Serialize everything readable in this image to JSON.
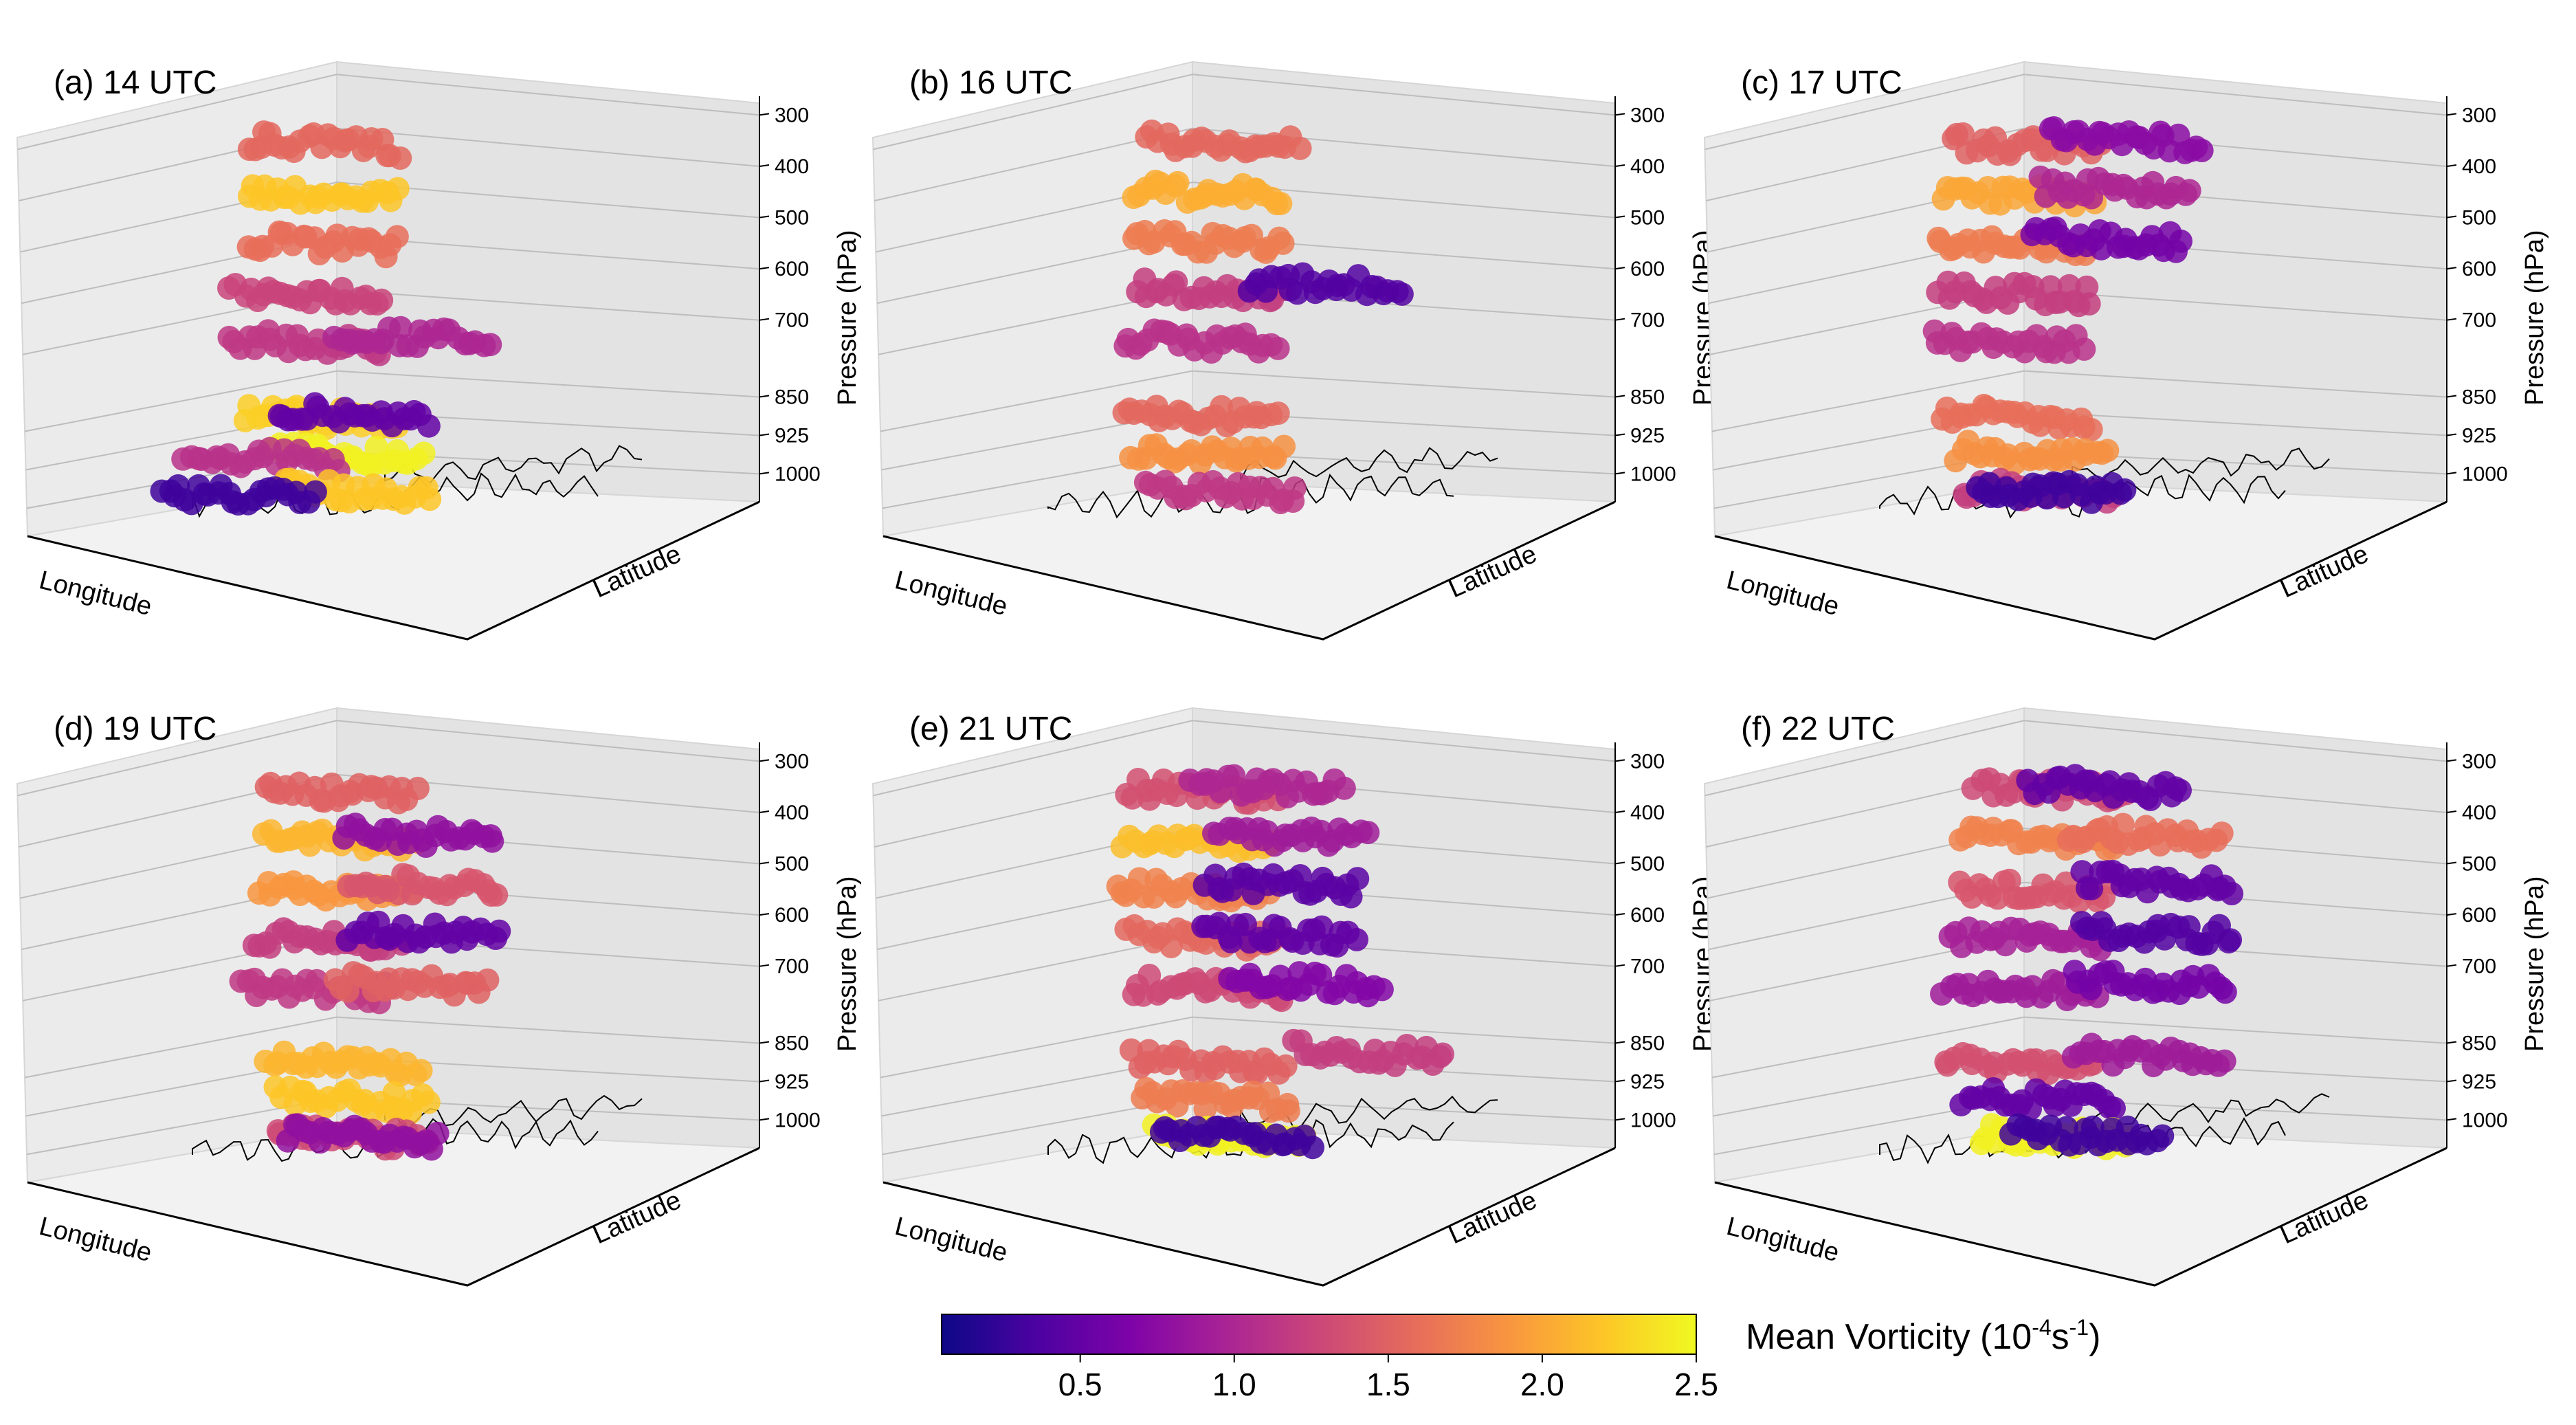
{
  "chart_data": {
    "type": "scatter",
    "subtype": "3d-scatter-panels",
    "colormap": "plasma",
    "colorbar": {
      "label_main": "Mean Vorticity (10",
      "label_exp1": "-4",
      "label_mid": "s",
      "label_exp2": "-1",
      "label_end": ")",
      "range": [
        0.05,
        2.5
      ],
      "ticks": [
        "0.5",
        "1.0",
        "1.5",
        "2.0",
        "2.5"
      ],
      "tick_values": [
        0.5,
        1.0,
        1.5,
        2.0,
        2.5
      ]
    },
    "axes": {
      "xlabel": "Longitude",
      "ylabel": "Latitude",
      "zlabel": "Pressure (hPa)",
      "zticks": [
        "300",
        "400",
        "500",
        "600",
        "700",
        "850",
        "925",
        "1000"
      ]
    },
    "panels": [
      {
        "title": "(a) 14 UTC",
        "levels": [
          {
            "p": 300,
            "blobs": [
              {
                "lon": 0.34,
                "lat": 0.53,
                "v": 1.55
              }
            ]
          },
          {
            "p": 400,
            "blobs": [
              {
                "lon": 0.34,
                "lat": 0.53,
                "v": 2.2
              }
            ]
          },
          {
            "p": 500,
            "blobs": [
              {
                "lon": 0.34,
                "lat": 0.53,
                "v": 1.6
              }
            ]
          },
          {
            "p": 600,
            "blobs": [
              {
                "lon": 0.3,
                "lat": 0.53,
                "v": 1.25
              }
            ]
          },
          {
            "p": 700,
            "blobs": [
              {
                "lon": 0.3,
                "lat": 0.52,
                "v": 1.15
              },
              {
                "lon": 0.46,
                "lat": 0.74,
                "v": 1.0
              }
            ]
          },
          {
            "p": 850,
            "blobs": [
              {
                "lon": 0.35,
                "lat": 0.5,
                "v": 2.25
              },
              {
                "lon": 0.38,
                "lat": 0.6,
                "v": 0.5
              }
            ]
          },
          {
            "p": 925,
            "blobs": [
              {
                "lon": 0.4,
                "lat": 0.53,
                "v": 2.45
              },
              {
                "lon": 0.25,
                "lat": 0.4,
                "v": 1.1
              }
            ]
          },
          {
            "p": 1000,
            "blobs": [
              {
                "lon": 0.44,
                "lat": 0.5,
                "v": 2.2
              },
              {
                "lon": 0.2,
                "lat": 0.38,
                "v": 0.3
              }
            ]
          }
        ]
      },
      {
        "title": "(b) 16 UTC",
        "levels": [
          {
            "p": 300,
            "blobs": [
              {
                "lon": 0.44,
                "lat": 0.56,
                "v": 1.55
              }
            ]
          },
          {
            "p": 400,
            "blobs": [
              {
                "lon": 0.4,
                "lat": 0.56,
                "v": 2.05
              }
            ]
          },
          {
            "p": 500,
            "blobs": [
              {
                "lon": 0.4,
                "lat": 0.56,
                "v": 1.7
              }
            ]
          },
          {
            "p": 600,
            "blobs": [
              {
                "lon": 0.4,
                "lat": 0.58,
                "v": 1.2
              },
              {
                "lon": 0.55,
                "lat": 0.85,
                "v": 0.4
              }
            ]
          },
          {
            "p": 700,
            "blobs": [
              {
                "lon": 0.38,
                "lat": 0.56,
                "v": 1.1
              }
            ]
          },
          {
            "p": 850,
            "blobs": [
              {
                "lon": 0.38,
                "lat": 0.56,
                "v": 1.55
              }
            ]
          },
          {
            "p": 925,
            "blobs": [
              {
                "lon": 0.4,
                "lat": 0.56,
                "v": 1.85
              }
            ]
          },
          {
            "p": 1000,
            "blobs": [
              {
                "lon": 0.44,
                "lat": 0.55,
                "v": 1.15
              }
            ]
          }
        ]
      },
      {
        "title": "(c) 17 UTC",
        "levels": [
          {
            "p": 300,
            "blobs": [
              {
                "lon": 0.4,
                "lat": 0.5,
                "v": 1.5
              },
              {
                "lon": 0.56,
                "lat": 0.68,
                "v": 0.75
              }
            ]
          },
          {
            "p": 400,
            "blobs": [
              {
                "lon": 0.38,
                "lat": 0.5,
                "v": 2.0
              },
              {
                "lon": 0.52,
                "lat": 0.7,
                "v": 1.0
              }
            ]
          },
          {
            "p": 500,
            "blobs": [
              {
                "lon": 0.36,
                "lat": 0.5,
                "v": 1.7
              },
              {
                "lon": 0.5,
                "lat": 0.7,
                "v": 0.6
              }
            ]
          },
          {
            "p": 600,
            "blobs": [
              {
                "lon": 0.36,
                "lat": 0.52,
                "v": 1.2
              }
            ]
          },
          {
            "p": 700,
            "blobs": [
              {
                "lon": 0.34,
                "lat": 0.52,
                "v": 1.1
              }
            ]
          },
          {
            "p": 850,
            "blobs": [
              {
                "lon": 0.36,
                "lat": 0.52,
                "v": 1.6
              }
            ]
          },
          {
            "p": 925,
            "blobs": [
              {
                "lon": 0.4,
                "lat": 0.52,
                "v": 1.85
              }
            ]
          },
          {
            "p": 1000,
            "blobs": [
              {
                "lon": 0.42,
                "lat": 0.52,
                "v": 1.2
              },
              {
                "lon": 0.44,
                "lat": 0.54,
                "v": 0.3
              }
            ]
          }
        ]
      },
      {
        "title": "(d) 19 UTC",
        "levels": [
          {
            "p": 300,
            "blobs": [
              {
                "lon": 0.4,
                "lat": 0.5,
                "v": 1.5
              }
            ]
          },
          {
            "p": 400,
            "blobs": [
              {
                "lon": 0.4,
                "lat": 0.5,
                "v": 2.1
              },
              {
                "lon": 0.5,
                "lat": 0.7,
                "v": 0.8
              }
            ]
          },
          {
            "p": 500,
            "blobs": [
              {
                "lon": 0.38,
                "lat": 0.52,
                "v": 1.9
              },
              {
                "lon": 0.5,
                "lat": 0.72,
                "v": 1.4
              }
            ]
          },
          {
            "p": 600,
            "blobs": [
              {
                "lon": 0.36,
                "lat": 0.52,
                "v": 1.2
              },
              {
                "lon": 0.5,
                "lat": 0.72,
                "v": 0.5
              }
            ]
          },
          {
            "p": 700,
            "blobs": [
              {
                "lon": 0.34,
                "lat": 0.5,
                "v": 1.15
              },
              {
                "lon": 0.48,
                "lat": 0.7,
                "v": 1.5
              }
            ]
          },
          {
            "p": 850,
            "blobs": [
              {
                "lon": 0.4,
                "lat": 0.52,
                "v": 2.1
              }
            ]
          },
          {
            "p": 925,
            "blobs": [
              {
                "lon": 0.42,
                "lat": 0.52,
                "v": 2.2
              }
            ]
          },
          {
            "p": 1000,
            "blobs": [
              {
                "lon": 0.42,
                "lat": 0.52,
                "v": 1.3
              },
              {
                "lon": 0.44,
                "lat": 0.54,
                "v": 0.8
              }
            ]
          }
        ]
      },
      {
        "title": "(e) 21 UTC",
        "levels": [
          {
            "p": 300,
            "blobs": [
              {
                "lon": 0.42,
                "lat": 0.5,
                "v": 1.35
              },
              {
                "lon": 0.5,
                "lat": 0.66,
                "v": 1.0
              }
            ]
          },
          {
            "p": 400,
            "blobs": [
              {
                "lon": 0.4,
                "lat": 0.52,
                "v": 2.15
              },
              {
                "lon": 0.54,
                "lat": 0.7,
                "v": 0.9
              }
            ]
          },
          {
            "p": 500,
            "blobs": [
              {
                "lon": 0.38,
                "lat": 0.52,
                "v": 1.75
              },
              {
                "lon": 0.52,
                "lat": 0.7,
                "v": 0.45
              }
            ]
          },
          {
            "p": 600,
            "blobs": [
              {
                "lon": 0.4,
                "lat": 0.54,
                "v": 1.55
              },
              {
                "lon": 0.5,
                "lat": 0.72,
                "v": 0.5
              }
            ]
          },
          {
            "p": 700,
            "blobs": [
              {
                "lon": 0.4,
                "lat": 0.56,
                "v": 1.3
              },
              {
                "lon": 0.56,
                "lat": 0.74,
                "v": 0.7
              }
            ]
          },
          {
            "p": 850,
            "blobs": [
              {
                "lon": 0.4,
                "lat": 0.56,
                "v": 1.5
              },
              {
                "lon": 0.66,
                "lat": 0.86,
                "v": 1.2
              }
            ]
          },
          {
            "p": 925,
            "blobs": [
              {
                "lon": 0.42,
                "lat": 0.56,
                "v": 1.7
              }
            ]
          },
          {
            "p": 1000,
            "blobs": [
              {
                "lon": 0.46,
                "lat": 0.56,
                "v": 2.45
              },
              {
                "lon": 0.46,
                "lat": 0.58,
                "v": 0.3
              }
            ]
          }
        ]
      },
      {
        "title": "(f) 22 UTC",
        "levels": [
          {
            "p": 300,
            "blobs": [
              {
                "lon": 0.44,
                "lat": 0.54,
                "v": 1.3
              },
              {
                "lon": 0.52,
                "lat": 0.66,
                "v": 0.5
              }
            ]
          },
          {
            "p": 400,
            "blobs": [
              {
                "lon": 0.4,
                "lat": 0.54,
                "v": 1.75
              },
              {
                "lon": 0.58,
                "lat": 0.74,
                "v": 1.6
              }
            ]
          },
          {
            "p": 500,
            "blobs": [
              {
                "lon": 0.4,
                "lat": 0.54,
                "v": 1.4
              },
              {
                "lon": 0.6,
                "lat": 0.76,
                "v": 0.5
              }
            ]
          },
          {
            "p": 600,
            "blobs": [
              {
                "lon": 0.38,
                "lat": 0.54,
                "v": 0.95
              },
              {
                "lon": 0.6,
                "lat": 0.76,
                "v": 0.4
              }
            ]
          },
          {
            "p": 700,
            "blobs": [
              {
                "lon": 0.36,
                "lat": 0.54,
                "v": 0.9
              },
              {
                "lon": 0.58,
                "lat": 0.76,
                "v": 0.6
              }
            ]
          },
          {
            "p": 850,
            "blobs": [
              {
                "lon": 0.36,
                "lat": 0.54,
                "v": 1.35
              },
              {
                "lon": 0.58,
                "lat": 0.76,
                "v": 0.9
              }
            ]
          },
          {
            "p": 925,
            "blobs": [
              {
                "lon": 0.4,
                "lat": 0.56,
                "v": 0.5
              }
            ]
          },
          {
            "p": 1000,
            "blobs": [
              {
                "lon": 0.44,
                "lat": 0.56,
                "v": 2.45
              },
              {
                "lon": 0.5,
                "lat": 0.6,
                "v": 0.3
              }
            ]
          }
        ]
      }
    ]
  }
}
